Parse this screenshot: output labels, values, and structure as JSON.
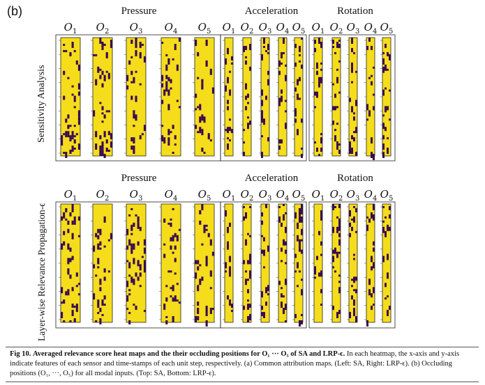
{
  "panel_label": "(b)",
  "groups": {
    "pressure": "Pressure",
    "acceleration": "Acceleration",
    "rotation": "Rotation"
  },
  "row_labels": {
    "top": "Sensitivity Analysis",
    "bottom": "Layer-wise Relevance Propagation-ϵ"
  },
  "occlusion_labels": [
    "O1",
    "O2",
    "O3",
    "O4",
    "O5"
  ],
  "colors": {
    "fill": "#f5dd1b",
    "mark": "#3b0b4f",
    "frame": "#222222"
  },
  "caption": {
    "fig_label": "Fig 10.",
    "bold_text": "Averaged relevance score heat maps and the their occluding positions for O₁ ··· O₅ of SA and LRP-ϵ.",
    "body_text": "In each heatmap, the x-axis and y-axis indicate features of each sensor and time-stamps of each unit step, respectively. (a) Common attribution maps. (Left: SA, Right: LRP-ϵ). (b) Occluding positions (O₁, ···, O₅) for all modal inputs. (Top: SA, Bottom: LRP-ϵ)."
  }
}
